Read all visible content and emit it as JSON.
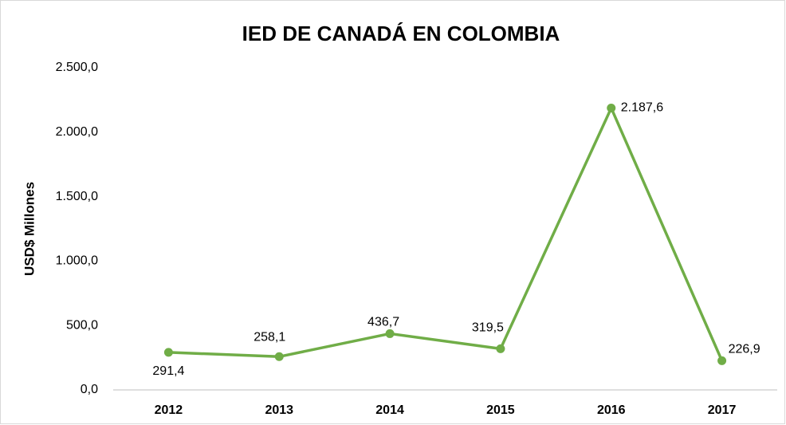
{
  "chart_data": {
    "type": "line",
    "title": "IED DE CANADÁ EN COLOMBIA",
    "y_label": "USD$ Millones",
    "categories": [
      "2012",
      "2013",
      "2014",
      "2015",
      "2016",
      "2017"
    ],
    "series": [
      {
        "name": "IED",
        "color": "#70ad47",
        "values": [
          291.4,
          258.1,
          436.7,
          319.5,
          2187.6,
          226.9
        ],
        "value_labels": [
          "291,4",
          "258,1",
          "436,7",
          "319,5",
          "2.187,6",
          "226,9"
        ]
      }
    ],
    "ylim": [
      0,
      2500
    ],
    "yticks": [
      {
        "value": 0,
        "label": "0,0"
      },
      {
        "value": 500,
        "label": "500,0"
      },
      {
        "value": 1000,
        "label": "1.000,0"
      },
      {
        "value": 1500,
        "label": "1.500,0"
      },
      {
        "value": 2000,
        "label": "2.000,0"
      },
      {
        "value": 2500,
        "label": "2.500,0"
      }
    ],
    "grid": false
  }
}
